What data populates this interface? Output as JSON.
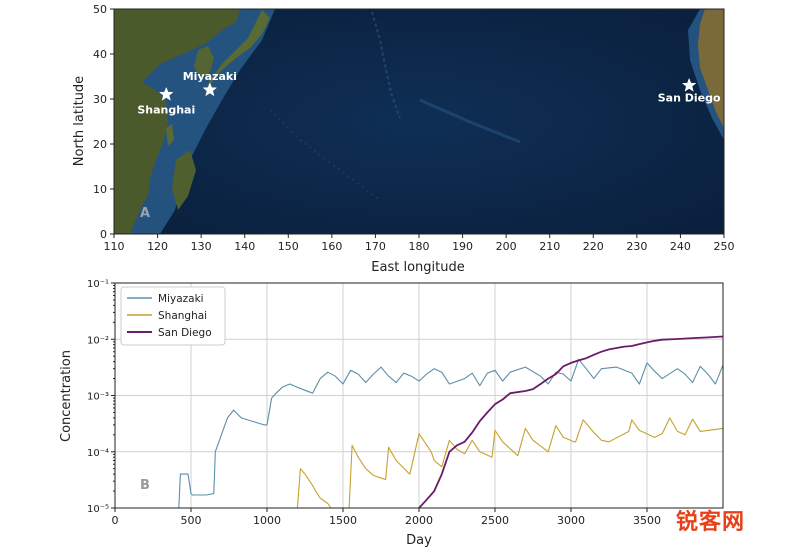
{
  "watermark": "锐客网",
  "chart_data": [
    {
      "type": "map",
      "panel_label": "A",
      "xlabel": "East longitude",
      "ylabel": "North latitude",
      "xlim": [
        110,
        250
      ],
      "ylim": [
        0,
        50
      ],
      "xticks": [
        110,
        120,
        130,
        140,
        150,
        160,
        170,
        180,
        190,
        200,
        210,
        220,
        230,
        240,
        250
      ],
      "yticks": [
        0,
        10,
        20,
        30,
        40,
        50
      ],
      "points": [
        {
          "name": "Miyazaki",
          "lon": 132,
          "lat": 32
        },
        {
          "name": "Shanghai",
          "lon": 122,
          "lat": 31
        },
        {
          "name": "San Diego",
          "lon": 242,
          "lat": 33
        }
      ],
      "colors": {
        "ocean": "#0c2748",
        "land": "#4b5a2a",
        "shelf": "#2a5f8f",
        "marker": "#ffffff"
      }
    },
    {
      "type": "line",
      "panel_label": "B",
      "xlabel": "Day",
      "ylabel": "Concentration",
      "xlim": [
        0,
        4000
      ],
      "ylim": [
        1e-05,
        0.1
      ],
      "yscale": "log",
      "xticks": [
        0,
        500,
        1000,
        1500,
        2000,
        2500,
        3000,
        3500
      ],
      "yticks": [
        "10⁻⁵",
        "10⁻⁴",
        "10⁻³",
        "10⁻²",
        "10⁻¹"
      ],
      "grid": true,
      "legend": "top-left",
      "series": [
        {
          "name": "Miyazaki",
          "color": "#5b8fa8",
          "x": [
            420,
            430,
            480,
            500,
            510,
            600,
            650,
            660,
            700,
            740,
            780,
            830,
            900,
            980,
            1000,
            1030,
            1060,
            1100,
            1150,
            1200,
            1300,
            1350,
            1400,
            1450,
            1500,
            1550,
            1600,
            1650,
            1700,
            1750,
            1800,
            1850,
            1900,
            1950,
            2000,
            2050,
            2100,
            2150,
            2200,
            2300,
            2350,
            2400,
            2450,
            2500,
            2550,
            2600,
            2700,
            2800,
            2850,
            2900,
            2950,
            3000,
            3050,
            3100,
            3150,
            3200,
            3300,
            3400,
            3450,
            3500,
            3550,
            3600,
            3700,
            3750,
            3800,
            3850,
            3900,
            3950,
            4000
          ],
          "y": [
            1e-05,
            4e-05,
            4e-05,
            1.8e-05,
            1.7e-05,
            1.7e-05,
            1.8e-05,
            0.0001,
            0.0002,
            0.0004,
            0.00055,
            0.0004,
            0.00035,
            0.0003,
            0.0003,
            0.0009,
            0.0011,
            0.0014,
            0.0016,
            0.0014,
            0.0011,
            0.002,
            0.0026,
            0.0022,
            0.0016,
            0.0028,
            0.0024,
            0.0017,
            0.0024,
            0.0032,
            0.0022,
            0.0017,
            0.0025,
            0.0022,
            0.0018,
            0.0024,
            0.003,
            0.0026,
            0.0016,
            0.002,
            0.0025,
            0.0015,
            0.0025,
            0.0028,
            0.0018,
            0.0026,
            0.0032,
            0.0022,
            0.0016,
            0.0026,
            0.0024,
            0.0018,
            0.0044,
            0.003,
            0.002,
            0.003,
            0.0032,
            0.0025,
            0.0016,
            0.0038,
            0.0027,
            0.002,
            0.003,
            0.0024,
            0.0017,
            0.0033,
            0.0024,
            0.0016,
            0.0035
          ]
        },
        {
          "name": "Shanghai",
          "color": "#c5a230",
          "x": [
            1200,
            1220,
            1250,
            1300,
            1320,
            1350,
            1400,
            1420,
            1480,
            1540,
            1560,
            1600,
            1650,
            1700,
            1780,
            1800,
            1850,
            1920,
            1940,
            2000,
            2080,
            2100,
            2150,
            2200,
            2250,
            2300,
            2350,
            2400,
            2480,
            2500,
            2550,
            2650,
            2700,
            2750,
            2850,
            2900,
            2950,
            3020,
            3030,
            3080,
            3150,
            3200,
            3250,
            3380,
            3400,
            3450,
            3550,
            3600,
            3650,
            3700,
            3750,
            3800,
            3850,
            4000
          ],
          "y": [
            1e-05,
            5e-05,
            4e-05,
            2.5e-05,
            2e-05,
            1.5e-05,
            1.2e-05,
            1e-05,
            1e-05,
            1e-05,
            0.00013,
            8e-05,
            5e-05,
            3.8e-05,
            3.2e-05,
            0.00012,
            7e-05,
            4.5e-05,
            4e-05,
            0.00021,
            0.0001,
            7e-05,
            5.4e-05,
            0.00016,
            0.00011,
            9.2e-05,
            0.00016,
            0.0001,
            8e-05,
            0.00024,
            0.00015,
            8.5e-05,
            0.00026,
            0.00016,
            0.0001,
            0.00029,
            0.00018,
            0.00015,
            0.00015,
            0.00037,
            0.00022,
            0.00016,
            0.00015,
            0.00023,
            0.00037,
            0.00024,
            0.00018,
            0.00021,
            0.0004,
            0.00023,
            0.0002,
            0.00038,
            0.00023,
            0.00026
          ]
        },
        {
          "name": "San Diego",
          "color": "#6a1b6a",
          "x": [
            2000,
            2050,
            2100,
            2150,
            2200,
            2250,
            2300,
            2350,
            2400,
            2450,
            2500,
            2550,
            2600,
            2700,
            2750,
            2800,
            2850,
            2900,
            2950,
            3000,
            3050,
            3100,
            3150,
            3200,
            3250,
            3300,
            3350,
            3400,
            3450,
            3500,
            3550,
            3600,
            3700,
            3800,
            3900,
            4000
          ],
          "y": [
            1e-05,
            1.4e-05,
            2e-05,
            4e-05,
            0.0001,
            0.00013,
            0.00015,
            0.00022,
            0.00035,
            0.0005,
            0.0007,
            0.00085,
            0.0011,
            0.0012,
            0.0013,
            0.0016,
            0.002,
            0.0024,
            0.0033,
            0.0038,
            0.0042,
            0.0046,
            0.0053,
            0.006,
            0.0066,
            0.007,
            0.0074,
            0.0076,
            0.0082,
            0.0088,
            0.0094,
            0.0098,
            0.0101,
            0.0105,
            0.0108,
            0.0112
          ]
        }
      ]
    }
  ]
}
